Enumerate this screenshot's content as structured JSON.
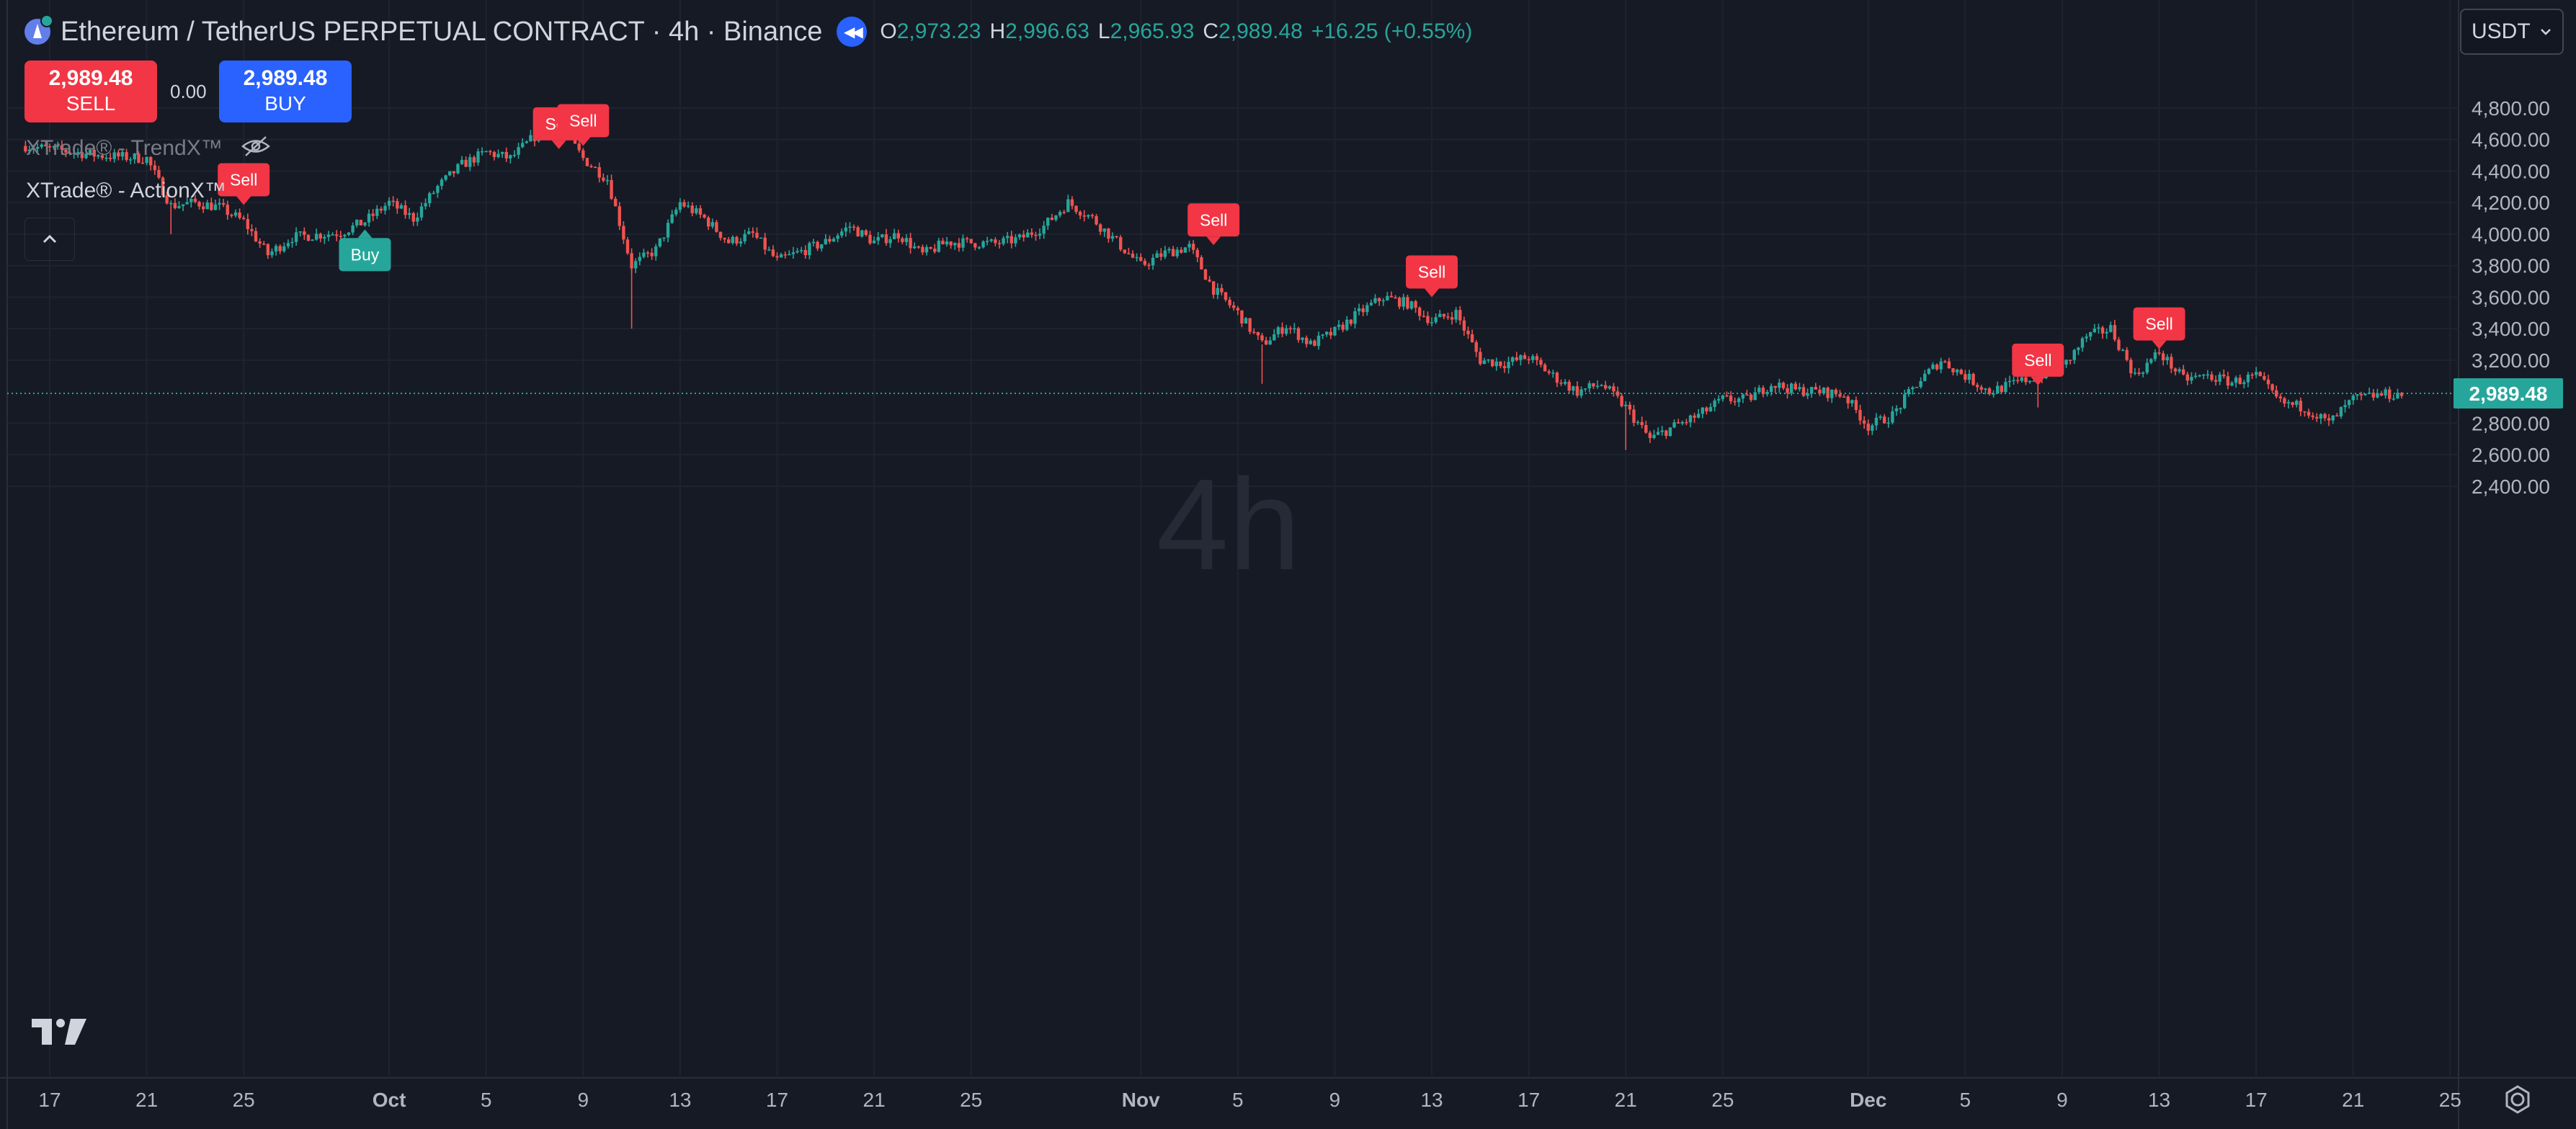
{
  "header": {
    "symbol_title": "Ethereum / TetherUS PERPETUAL CONTRACT · 4h · Binance",
    "ohlc": [
      {
        "key": "O",
        "value": "2,973.23"
      },
      {
        "key": "H",
        "value": "2,996.63"
      },
      {
        "key": "L",
        "value": "2,965.93"
      },
      {
        "key": "C",
        "value": "2,989.48"
      }
    ],
    "change": "+16.25 (+0.55%)"
  },
  "trade": {
    "sell_price": "2,989.48",
    "sell_label": "SELL",
    "spread": "0.00",
    "buy_price": "2,989.48",
    "buy_label": "BUY"
  },
  "indicators": [
    {
      "name": "XTrade® - TrendX™",
      "hidden": true
    },
    {
      "name": "XTrade® - ActionX™",
      "hidden": false
    }
  ],
  "currency": "USDT",
  "watermark": "4h",
  "price_axis": {
    "labels": [
      "4,800.00",
      "4,600.00",
      "4,400.00",
      "4,200.00",
      "4,000.00",
      "3,800.00",
      "3,600.00",
      "3,400.00",
      "3,200.00",
      "2,800.00",
      "2,600.00",
      "2,400.00"
    ],
    "last_price": "2,989.48"
  },
  "time_axis": {
    "labels": [
      "17",
      "21",
      "25",
      "Oct",
      "5",
      "9",
      "13",
      "17",
      "21",
      "25",
      "Nov",
      "5",
      "9",
      "13",
      "17",
      "21",
      "25",
      "Dec",
      "5",
      "9",
      "13",
      "17",
      "21",
      "25"
    ]
  },
  "colors": {
    "background": "#161a25",
    "up": "#26a69a",
    "down": "#ef5350",
    "sell_signal": "#f23645",
    "buy_signal": "#26a69a",
    "buy_button": "#2962ff"
  },
  "chart_data": {
    "type": "candlestick",
    "symbol": "ETHUSDT.P",
    "interval": "4h",
    "price_unit": "USDT",
    "ylim": [
      2350,
      4950
    ],
    "grid": true,
    "last_price": 2989.48,
    "close_path": [
      {
        "date": "2024-09-16",
        "price": 4560
      },
      {
        "date": "2024-09-18",
        "price": 4520
      },
      {
        "date": "2024-09-19",
        "price": 4500
      },
      {
        "date": "2024-09-21",
        "price": 4480
      },
      {
        "date": "2024-09-22",
        "price": 4180
      },
      {
        "date": "2024-09-23",
        "price": 4200
      },
      {
        "date": "2024-09-24",
        "price": 4170
      },
      {
        "date": "2024-09-25",
        "price": 4080
      },
      {
        "date": "2024-09-26",
        "price": 3870
      },
      {
        "date": "2024-09-27",
        "price": 3980
      },
      {
        "date": "2024-09-29",
        "price": 4010
      },
      {
        "date": "2024-09-30",
        "price": 4080
      },
      {
        "date": "2024-10-01",
        "price": 4200
      },
      {
        "date": "2024-10-02",
        "price": 4100
      },
      {
        "date": "2024-10-03",
        "price": 4300
      },
      {
        "date": "2024-10-04",
        "price": 4440
      },
      {
        "date": "2024-10-05",
        "price": 4520
      },
      {
        "date": "2024-10-06",
        "price": 4480
      },
      {
        "date": "2024-10-07",
        "price": 4620
      },
      {
        "date": "2024-10-08",
        "price": 4700
      },
      {
        "date": "2024-10-09",
        "price": 4480
      },
      {
        "date": "2024-10-10",
        "price": 4350
      },
      {
        "date": "2024-10-11",
        "price": 3800
      },
      {
        "date": "2024-10-12",
        "price": 3900
      },
      {
        "date": "2024-10-13",
        "price": 4200
      },
      {
        "date": "2024-10-14",
        "price": 4100
      },
      {
        "date": "2024-10-15",
        "price": 3950
      },
      {
        "date": "2024-10-16",
        "price": 4000
      },
      {
        "date": "2024-10-17",
        "price": 3830
      },
      {
        "date": "2024-10-19",
        "price": 3950
      },
      {
        "date": "2024-10-20",
        "price": 4050
      },
      {
        "date": "2024-10-21",
        "price": 3950
      },
      {
        "date": "2024-10-22",
        "price": 4000
      },
      {
        "date": "2024-10-23",
        "price": 3870
      },
      {
        "date": "2024-10-24",
        "price": 3950
      },
      {
        "date": "2024-10-26",
        "price": 3940
      },
      {
        "date": "2024-10-27",
        "price": 3970
      },
      {
        "date": "2024-10-28",
        "price": 4050
      },
      {
        "date": "2024-10-29",
        "price": 4200
      },
      {
        "date": "2024-10-30",
        "price": 4100
      },
      {
        "date": "2024-10-31",
        "price": 3950
      },
      {
        "date": "2024-11-01",
        "price": 3800
      },
      {
        "date": "2024-11-02",
        "price": 3880
      },
      {
        "date": "2024-11-03",
        "price": 3920
      },
      {
        "date": "2024-11-04",
        "price": 3650
      },
      {
        "date": "2024-11-05",
        "price": 3500
      },
      {
        "date": "2024-11-06",
        "price": 3300
      },
      {
        "date": "2024-11-07",
        "price": 3420
      },
      {
        "date": "2024-11-08",
        "price": 3300
      },
      {
        "date": "2024-11-09",
        "price": 3380
      },
      {
        "date": "2024-11-10",
        "price": 3500
      },
      {
        "date": "2024-11-11",
        "price": 3600
      },
      {
        "date": "2024-11-12",
        "price": 3560
      },
      {
        "date": "2024-11-13",
        "price": 3450
      },
      {
        "date": "2024-11-14",
        "price": 3500
      },
      {
        "date": "2024-11-15",
        "price": 3200
      },
      {
        "date": "2024-11-16",
        "price": 3180
      },
      {
        "date": "2024-11-17",
        "price": 3220
      },
      {
        "date": "2024-11-18",
        "price": 3100
      },
      {
        "date": "2024-11-19",
        "price": 3000
      },
      {
        "date": "2024-11-20",
        "price": 3050
      },
      {
        "date": "2024-11-21",
        "price": 2900
      },
      {
        "date": "2024-11-22",
        "price": 2700
      },
      {
        "date": "2024-11-23",
        "price": 2780
      },
      {
        "date": "2024-11-24",
        "price": 2850
      },
      {
        "date": "2024-11-25",
        "price": 2950
      },
      {
        "date": "2024-11-26",
        "price": 2950
      },
      {
        "date": "2024-11-27",
        "price": 3050
      },
      {
        "date": "2024-11-28",
        "price": 3010
      },
      {
        "date": "2024-11-29",
        "price": 3000
      },
      {
        "date": "2024-11-30",
        "price": 2980
      },
      {
        "date": "2024-12-01",
        "price": 2780
      },
      {
        "date": "2024-12-02",
        "price": 2850
      },
      {
        "date": "2024-12-03",
        "price": 3050
      },
      {
        "date": "2024-12-04",
        "price": 3200
      },
      {
        "date": "2024-12-05",
        "price": 3100
      },
      {
        "date": "2024-12-06",
        "price": 3000
      },
      {
        "date": "2024-12-07",
        "price": 3050
      },
      {
        "date": "2024-12-08",
        "price": 3100
      },
      {
        "date": "2024-12-09",
        "price": 3150
      },
      {
        "date": "2024-12-10",
        "price": 3350
      },
      {
        "date": "2024-12-11",
        "price": 3400
      },
      {
        "date": "2024-12-12",
        "price": 3100
      },
      {
        "date": "2024-12-13",
        "price": 3250
      },
      {
        "date": "2024-12-14",
        "price": 3080
      },
      {
        "date": "2024-12-15",
        "price": 3100
      },
      {
        "date": "2024-12-16",
        "price": 3060
      },
      {
        "date": "2024-12-17",
        "price": 3100
      },
      {
        "date": "2024-12-18",
        "price": 2930
      },
      {
        "date": "2024-12-19",
        "price": 2900
      },
      {
        "date": "2024-12-20",
        "price": 2800
      },
      {
        "date": "2024-12-21",
        "price": 2950
      },
      {
        "date": "2024-12-22",
        "price": 2980
      },
      {
        "date": "2024-12-23",
        "price": 2985
      }
    ],
    "wick_spikes": [
      {
        "date": "2024-09-22",
        "price": 4000
      },
      {
        "date": "2024-10-11",
        "price": 3400
      },
      {
        "date": "2024-11-06",
        "price": 3050
      },
      {
        "date": "2024-11-21",
        "price": 2630
      },
      {
        "date": "2024-12-08",
        "price": 2900
      }
    ],
    "signals": [
      {
        "type": "Sell",
        "date": "2024-09-25",
        "price": 4185
      },
      {
        "type": "Buy",
        "date": "2024-09-30",
        "price": 4030
      },
      {
        "type": "Sell",
        "date": "2024-10-08",
        "price": 4540
      },
      {
        "type": "Sell",
        "date": "2024-10-09",
        "price": 4560
      },
      {
        "type": "Sell",
        "date": "2024-11-04",
        "price": 3930
      },
      {
        "type": "Sell",
        "date": "2024-11-13",
        "price": 3600
      },
      {
        "type": "Sell",
        "date": "2024-12-08",
        "price": 3040
      },
      {
        "type": "Sell",
        "date": "2024-12-13",
        "price": 3270
      }
    ]
  }
}
